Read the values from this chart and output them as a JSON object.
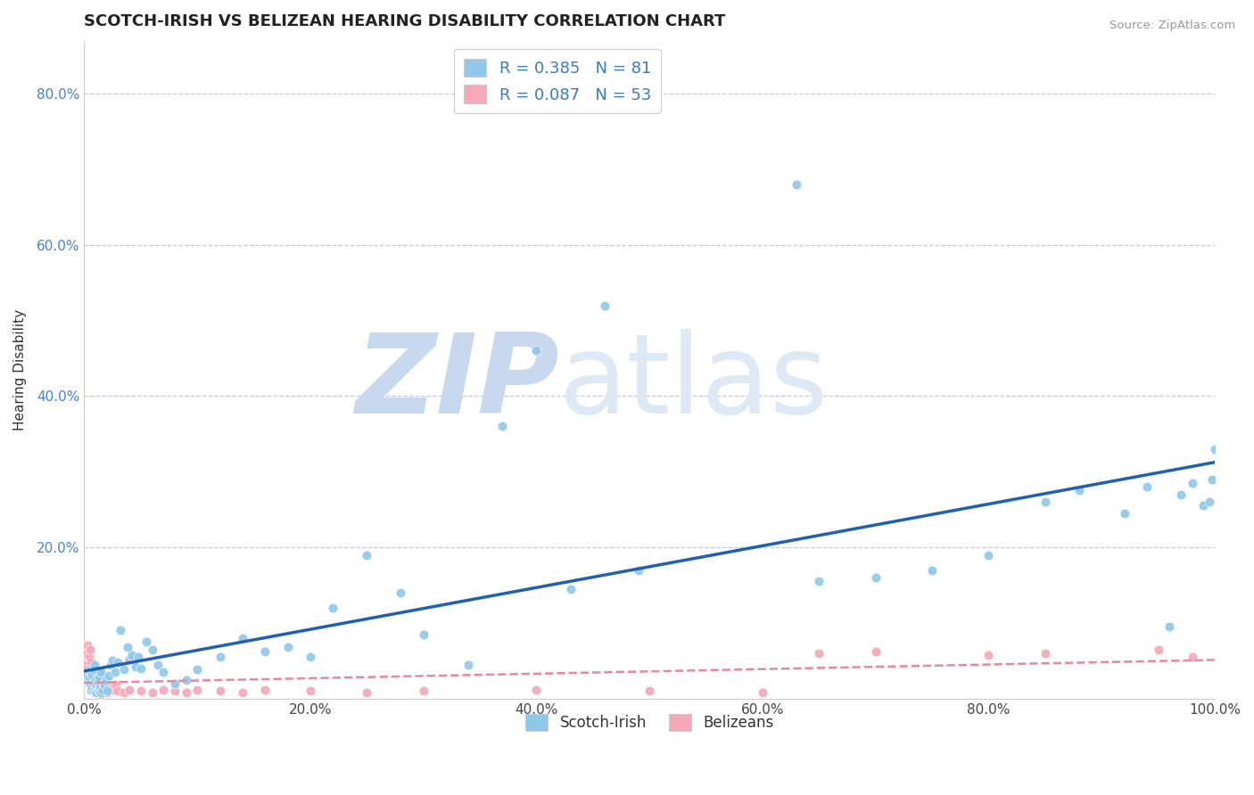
{
  "title": "SCOTCH-IRISH VS BELIZEAN HEARING DISABILITY CORRELATION CHART",
  "source": "Source: ZipAtlas.com",
  "ylabel": "Hearing Disability",
  "xlim": [
    0,
    1.0
  ],
  "ylim": [
    0,
    0.87
  ],
  "xtick_labels": [
    "0.0%",
    "20.0%",
    "40.0%",
    "60.0%",
    "80.0%",
    "100.0%"
  ],
  "xtick_vals": [
    0.0,
    0.2,
    0.4,
    0.6,
    0.8,
    1.0
  ],
  "ytick_labels": [
    "20.0%",
    "40.0%",
    "60.0%",
    "80.0%"
  ],
  "ytick_vals": [
    0.2,
    0.4,
    0.6,
    0.8
  ],
  "legend_labels": [
    "Scotch-Irish",
    "Belizeans"
  ],
  "r_scotch": "0.385",
  "n_scotch": "81",
  "r_belizean": "0.087",
  "n_belizean": "53",
  "scotch_color": "#8fc8ea",
  "belizean_color": "#f4a8b8",
  "scotch_line_color": "#2060b0",
  "belizean_line_color": "#e888a0",
  "watermark_color": "#dde8f5",
  "grid_color": "#c8c8e0",
  "scotch_x": [
    0.002,
    0.003,
    0.004,
    0.004,
    0.005,
    0.005,
    0.006,
    0.006,
    0.007,
    0.007,
    0.008,
    0.008,
    0.009,
    0.009,
    0.01,
    0.01,
    0.011,
    0.011,
    0.012,
    0.012,
    0.013,
    0.013,
    0.014,
    0.015,
    0.015,
    0.016,
    0.017,
    0.018,
    0.019,
    0.02,
    0.022,
    0.023,
    0.025,
    0.027,
    0.03,
    0.032,
    0.035,
    0.038,
    0.04,
    0.042,
    0.045,
    0.048,
    0.05,
    0.055,
    0.06,
    0.065,
    0.07,
    0.08,
    0.09,
    0.1,
    0.12,
    0.14,
    0.16,
    0.18,
    0.2,
    0.22,
    0.25,
    0.28,
    0.3,
    0.34,
    0.37,
    0.4,
    0.43,
    0.46,
    0.49,
    0.63,
    0.65,
    0.7,
    0.75,
    0.8,
    0.85,
    0.88,
    0.92,
    0.94,
    0.96,
    0.97,
    0.98,
    0.99,
    0.995,
    0.998,
    1.0
  ],
  "scotch_y": [
    0.025,
    0.03,
    0.022,
    0.028,
    0.018,
    0.035,
    0.012,
    0.04,
    0.015,
    0.032,
    0.02,
    0.038,
    0.01,
    0.045,
    0.015,
    0.025,
    0.008,
    0.018,
    0.012,
    0.022,
    0.01,
    0.028,
    0.015,
    0.008,
    0.035,
    0.012,
    0.02,
    0.018,
    0.025,
    0.01,
    0.03,
    0.045,
    0.05,
    0.035,
    0.048,
    0.09,
    0.038,
    0.068,
    0.052,
    0.058,
    0.042,
    0.055,
    0.04,
    0.075,
    0.065,
    0.045,
    0.035,
    0.02,
    0.025,
    0.038,
    0.055,
    0.08,
    0.062,
    0.068,
    0.055,
    0.12,
    0.19,
    0.14,
    0.085,
    0.045,
    0.36,
    0.46,
    0.145,
    0.52,
    0.17,
    0.68,
    0.155,
    0.16,
    0.17,
    0.19,
    0.26,
    0.275,
    0.245,
    0.28,
    0.095,
    0.27,
    0.285,
    0.255,
    0.26,
    0.29,
    0.33
  ],
  "belizean_x": [
    0.001,
    0.002,
    0.002,
    0.003,
    0.003,
    0.004,
    0.004,
    0.005,
    0.005,
    0.006,
    0.006,
    0.007,
    0.007,
    0.008,
    0.008,
    0.009,
    0.01,
    0.011,
    0.012,
    0.013,
    0.014,
    0.015,
    0.016,
    0.017,
    0.018,
    0.02,
    0.022,
    0.025,
    0.028,
    0.03,
    0.035,
    0.04,
    0.05,
    0.06,
    0.07,
    0.08,
    0.09,
    0.1,
    0.12,
    0.14,
    0.16,
    0.2,
    0.25,
    0.3,
    0.4,
    0.5,
    0.6,
    0.65,
    0.7,
    0.8,
    0.85,
    0.95,
    0.98
  ],
  "belizean_y": [
    0.045,
    0.038,
    0.06,
    0.032,
    0.07,
    0.028,
    0.055,
    0.025,
    0.065,
    0.02,
    0.048,
    0.015,
    0.035,
    0.012,
    0.04,
    0.008,
    0.03,
    0.01,
    0.025,
    0.008,
    0.035,
    0.005,
    0.02,
    0.01,
    0.025,
    0.008,
    0.015,
    0.012,
    0.018,
    0.01,
    0.008,
    0.012,
    0.01,
    0.008,
    0.012,
    0.01,
    0.008,
    0.012,
    0.01,
    0.008,
    0.012,
    0.01,
    0.008,
    0.01,
    0.012,
    0.01,
    0.008,
    0.06,
    0.062,
    0.058,
    0.06,
    0.065,
    0.055
  ]
}
